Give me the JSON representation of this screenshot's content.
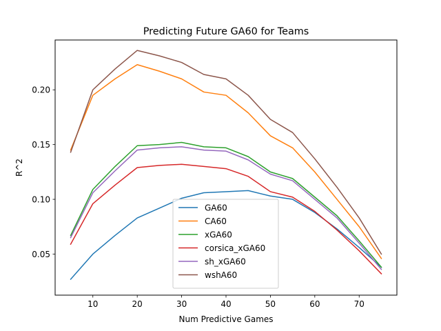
{
  "chart_data": {
    "type": "line",
    "title": "Predicting Future GA60 for Teams",
    "xlabel": "Num Predictive Games",
    "ylabel": "R^2",
    "xlim": [
      1.5,
      78.5
    ],
    "ylim": [
      0.0125,
      0.2455
    ],
    "xticks": [
      10,
      20,
      30,
      40,
      50,
      60,
      70
    ],
    "yticks": [
      0.05,
      0.1,
      0.15,
      0.2
    ],
    "ytick_labels": [
      "0.05",
      "0.10",
      "0.15",
      "0.20"
    ],
    "grid": false,
    "legend_position": "lower center",
    "x": [
      5,
      10,
      15,
      20,
      25,
      30,
      35,
      40,
      45,
      50,
      55,
      60,
      65,
      70,
      75
    ],
    "series": [
      {
        "name": "GA60",
        "color": "#1f77b4",
        "values": [
          0.027,
          0.05,
          0.067,
          0.083,
          0.092,
          0.101,
          0.106,
          0.107,
          0.108,
          0.103,
          0.1,
          0.088,
          0.073,
          0.056,
          0.038
        ]
      },
      {
        "name": "CA60",
        "color": "#ff7f0e",
        "values": [
          0.145,
          0.195,
          0.21,
          0.223,
          0.217,
          0.21,
          0.198,
          0.195,
          0.179,
          0.158,
          0.147,
          0.125,
          0.1,
          0.075,
          0.046
        ]
      },
      {
        "name": "xGA60",
        "color": "#2ca02c",
        "values": [
          0.067,
          0.109,
          0.13,
          0.149,
          0.15,
          0.152,
          0.148,
          0.147,
          0.139,
          0.125,
          0.119,
          0.102,
          0.085,
          0.062,
          0.038
        ]
      },
      {
        "name": "corsica_xGA60",
        "color": "#d62728",
        "values": [
          0.059,
          0.096,
          0.113,
          0.129,
          0.131,
          0.132,
          0.13,
          0.128,
          0.121,
          0.107,
          0.102,
          0.089,
          0.072,
          0.053,
          0.032
        ]
      },
      {
        "name": "sh_xGA60",
        "color": "#9467bd",
        "values": [
          0.065,
          0.106,
          0.126,
          0.145,
          0.147,
          0.148,
          0.145,
          0.144,
          0.136,
          0.123,
          0.117,
          0.1,
          0.083,
          0.06,
          0.036
        ]
      },
      {
        "name": "wshA60",
        "color": "#8c564b",
        "values": [
          0.143,
          0.2,
          0.219,
          0.236,
          0.231,
          0.225,
          0.214,
          0.21,
          0.195,
          0.173,
          0.161,
          0.137,
          0.111,
          0.083,
          0.05
        ]
      }
    ]
  }
}
